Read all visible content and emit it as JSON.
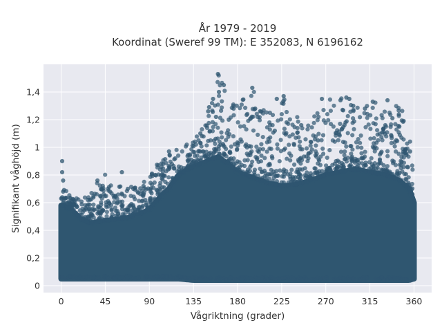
{
  "chart_data": {
    "type": "scatter",
    "title": "År 1979 - 2019",
    "subtitle": "Koordinat (Sweref 99 TM): E 352083, N 6196162",
    "xlabel": "Vågriktning (grader)",
    "ylabel": "Signifikant våghöjd (m)",
    "xlim": [
      -18,
      378
    ],
    "ylim": [
      -0.05,
      1.6
    ],
    "x_ticks": [
      0,
      45,
      90,
      135,
      180,
      225,
      270,
      315,
      360
    ],
    "x_tick_labels": [
      "0",
      "45",
      "90",
      "135",
      "180",
      "225",
      "270",
      "315",
      "360"
    ],
    "y_ticks": [
      0,
      0.2,
      0.4,
      0.6,
      0.8,
      1.0,
      1.2,
      1.4
    ],
    "y_tick_labels": [
      "0",
      "0,2",
      "0,4",
      "0,6",
      "0,8",
      "1",
      "1,2",
      "1,4"
    ],
    "grid": true,
    "marker_color": "#2f5670",
    "plot_background": "#e8e9f0",
    "envelope": {
      "x": [
        0,
        10,
        20,
        30,
        45,
        60,
        75,
        90,
        100,
        110,
        120,
        135,
        150,
        160,
        170,
        180,
        195,
        210,
        225,
        240,
        255,
        270,
        285,
        300,
        315,
        330,
        345,
        355,
        360
      ],
      "y_min": [
        0.05,
        0.05,
        0.05,
        0.05,
        0.05,
        0.05,
        0.05,
        0.05,
        0.05,
        0.05,
        0.05,
        0.04,
        0.04,
        0.04,
        0.04,
        0.04,
        0.04,
        0.04,
        0.04,
        0.04,
        0.04,
        0.04,
        0.04,
        0.04,
        0.04,
        0.04,
        0.04,
        0.04,
        0.05
      ],
      "y_dense_max": [
        0.58,
        0.55,
        0.48,
        0.45,
        0.47,
        0.48,
        0.5,
        0.55,
        0.63,
        0.7,
        0.8,
        0.86,
        0.9,
        0.93,
        0.88,
        0.82,
        0.78,
        0.74,
        0.72,
        0.73,
        0.76,
        0.8,
        0.82,
        0.84,
        0.82,
        0.8,
        0.76,
        0.7,
        0.6
      ],
      "y_outlier_max": [
        0.9,
        0.65,
        0.62,
        0.7,
        0.82,
        0.72,
        0.72,
        0.8,
        0.9,
        0.97,
        1.0,
        1.05,
        1.26,
        1.53,
        1.45,
        1.3,
        1.43,
        1.28,
        1.38,
        1.22,
        1.2,
        1.35,
        1.36,
        1.3,
        1.34,
        1.3,
        1.35,
        1.1,
        0.97
      ]
    },
    "outliers": [
      {
        "x": 1,
        "y": 0.9
      },
      {
        "x": 1,
        "y": 0.82
      },
      {
        "x": 2,
        "y": 0.76
      },
      {
        "x": 2,
        "y": 0.68
      },
      {
        "x": 37,
        "y": 0.76
      },
      {
        "x": 62,
        "y": 0.82
      },
      {
        "x": 55,
        "y": 0.65
      },
      {
        "x": 68,
        "y": 0.7
      },
      {
        "x": 84,
        "y": 0.72
      },
      {
        "x": 96,
        "y": 0.8
      },
      {
        "x": 110,
        "y": 0.97
      },
      {
        "x": 150,
        "y": 1.26
      },
      {
        "x": 151,
        "y": 1.29
      },
      {
        "x": 155,
        "y": 1.35
      },
      {
        "x": 160,
        "y": 1.53
      },
      {
        "x": 161,
        "y": 1.4
      },
      {
        "x": 166,
        "y": 1.45
      },
      {
        "x": 158,
        "y": 1.22
      },
      {
        "x": 171,
        "y": 1.2
      },
      {
        "x": 176,
        "y": 1.28
      },
      {
        "x": 195,
        "y": 1.43
      },
      {
        "x": 198,
        "y": 1.28
      },
      {
        "x": 203,
        "y": 1.26
      },
      {
        "x": 220,
        "y": 1.35
      },
      {
        "x": 227,
        "y": 1.37
      },
      {
        "x": 218,
        "y": 1.12
      },
      {
        "x": 266,
        "y": 1.35
      },
      {
        "x": 285,
        "y": 1.34
      },
      {
        "x": 291,
        "y": 1.36
      },
      {
        "x": 294,
        "y": 1.35
      },
      {
        "x": 298,
        "y": 1.3
      },
      {
        "x": 310,
        "y": 1.28
      },
      {
        "x": 318,
        "y": 1.33
      },
      {
        "x": 333,
        "y": 1.34
      },
      {
        "x": 345,
        "y": 1.15
      },
      {
        "x": 338,
        "y": 1.21
      },
      {
        "x": 356,
        "y": 0.97
      },
      {
        "x": 142,
        "y": 1.1
      },
      {
        "x": 245,
        "y": 1.16
      },
      {
        "x": 262,
        "y": 1.05
      },
      {
        "x": 230,
        "y": 1.18
      }
    ]
  }
}
